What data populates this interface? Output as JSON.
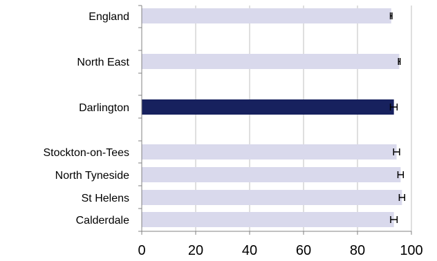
{
  "chart_data": {
    "type": "bar",
    "orientation": "horizontal",
    "categories": [
      "England",
      "North East",
      "Darlington",
      "Stockton-on-Tees",
      "North Tyneside",
      "St Helens",
      "Calderdale"
    ],
    "values": [
      92.5,
      95.5,
      93.5,
      94.5,
      96.0,
      96.5,
      93.5
    ],
    "error_low": [
      92.2,
      95.2,
      92.2,
      93.4,
      95.0,
      95.5,
      92.3
    ],
    "error_high": [
      92.8,
      95.8,
      94.7,
      95.6,
      97.0,
      97.5,
      94.7
    ],
    "highlight_category": "Darlington",
    "colors": {
      "bar": "#d9d9ec",
      "highlight": "#17215e",
      "grid": "#bfbfbf",
      "axis": "#808080",
      "error": "#000000"
    },
    "xlim": [
      0,
      100
    ],
    "xticks": [
      0,
      20,
      40,
      60,
      80,
      100
    ],
    "xtick_labels": [
      "0",
      "20",
      "40",
      "60",
      "80",
      "100"
    ],
    "grid": true,
    "title": "",
    "xlabel": "",
    "ylabel": ""
  }
}
